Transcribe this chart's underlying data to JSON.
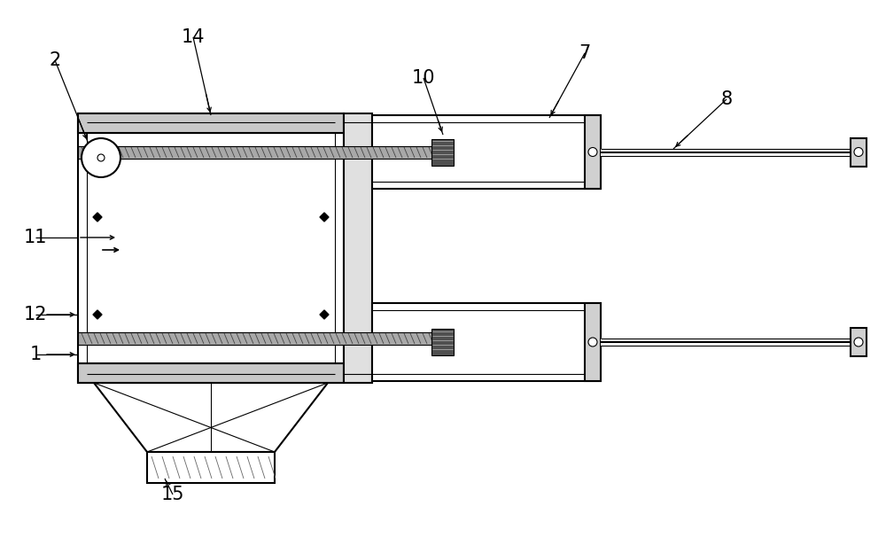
{
  "bg_color": "#ffffff",
  "lc": "#000000",
  "fig_width": 10.0,
  "fig_height": 6.15,
  "dpi": 100
}
